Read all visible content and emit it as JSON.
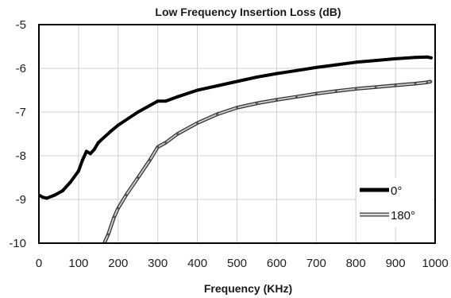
{
  "chart_data": {
    "type": "line",
    "title": "Low Frequency Insertion Loss (dB)",
    "xlabel": "Frequency (KHz)",
    "ylabel": "",
    "xlim": [
      0,
      1000
    ],
    "ylim": [
      -10,
      -5
    ],
    "xticks": [
      0,
      100,
      200,
      300,
      400,
      500,
      600,
      700,
      800,
      900,
      1000
    ],
    "yticks": [
      -5,
      -6,
      -7,
      -8,
      -9,
      -10
    ],
    "grid": true,
    "legend_position": "bottom-right",
    "series": [
      {
        "name": "0°",
        "color": "#000000",
        "style": "solid-thick",
        "x": [
          0,
          10,
          20,
          40,
          60,
          80,
          100,
          110,
          120,
          130,
          140,
          150,
          180,
          200,
          250,
          280,
          300,
          320,
          350,
          400,
          450,
          500,
          550,
          600,
          650,
          700,
          750,
          800,
          850,
          900,
          950,
          980,
          990
        ],
        "y": [
          -8.9,
          -8.95,
          -8.97,
          -8.9,
          -8.8,
          -8.6,
          -8.35,
          -8.1,
          -7.9,
          -7.95,
          -7.85,
          -7.7,
          -7.45,
          -7.3,
          -7.0,
          -6.85,
          -6.75,
          -6.75,
          -6.65,
          -6.5,
          -6.4,
          -6.3,
          -6.2,
          -6.12,
          -6.05,
          -5.98,
          -5.92,
          -5.86,
          -5.82,
          -5.78,
          -5.75,
          -5.74,
          -5.76
        ]
      },
      {
        "name": "180°",
        "color": "#c8c8c8",
        "style": "double-line",
        "x": [
          165,
          175,
          190,
          200,
          220,
          250,
          280,
          300,
          320,
          350,
          400,
          450,
          500,
          550,
          600,
          650,
          700,
          750,
          800,
          850,
          900,
          950,
          980,
          990
        ],
        "y": [
          -10.0,
          -9.8,
          -9.4,
          -9.2,
          -8.9,
          -8.5,
          -8.1,
          -7.8,
          -7.7,
          -7.5,
          -7.25,
          -7.05,
          -6.9,
          -6.8,
          -6.72,
          -6.65,
          -6.58,
          -6.52,
          -6.47,
          -6.43,
          -6.39,
          -6.35,
          -6.32,
          -6.3
        ]
      }
    ]
  }
}
